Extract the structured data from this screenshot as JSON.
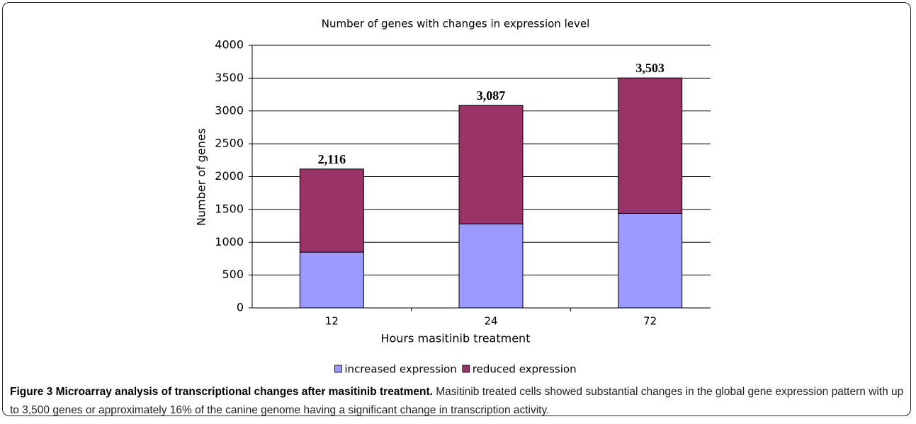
{
  "chart_data": {
    "type": "bar",
    "stacked": true,
    "title": "Number of genes with changes in expression level",
    "x_label": "Hours masitinib treatment",
    "y_label": "Number of genes",
    "categories": [
      "12",
      "24",
      "72"
    ],
    "series": [
      {
        "name": "increased expression",
        "color": "#9999ff",
        "values": [
          850,
          1280,
          1440
        ]
      },
      {
        "name": "reduced expression",
        "color": "#993366",
        "values": [
          1266,
          1807,
          2063
        ]
      }
    ],
    "totals": {
      "values": [
        2116,
        3087,
        3503
      ],
      "value_labels": [
        "2,116",
        "3,087",
        "3,503"
      ]
    },
    "ylim": [
      0,
      4000
    ],
    "yticks": [
      0,
      500,
      1000,
      1500,
      2000,
      2500,
      3000,
      3500,
      4000
    ],
    "grid": true,
    "legend": "bottom"
  },
  "caption": {
    "label": "Figure 3 Microarray analysis of transcriptional changes after masitinib treatment.",
    "text": "Masitinib treated cells showed substantial changes in the global gene expression pattern with up to 3,500 genes or approximately 16% of the canine genome having a significant change in transcription activity."
  }
}
